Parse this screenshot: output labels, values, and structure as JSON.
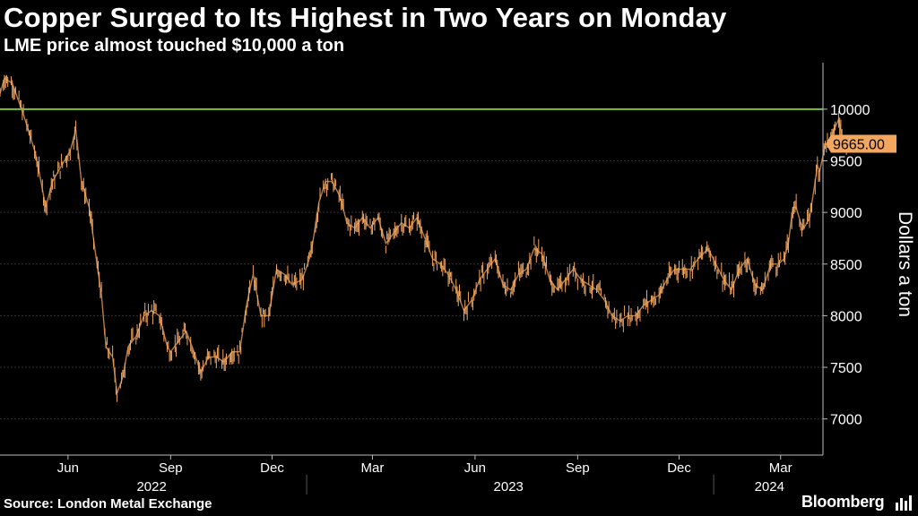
{
  "header": {
    "title": "Copper Surged to Its Highest in Two Years on Monday",
    "subtitle": "LME price almost touched $10,000 a ton"
  },
  "footer": {
    "source": "Source: London Metal Exchange",
    "brand": "Bloomberg",
    "brand_icon": "bloomberg-terminal-icon"
  },
  "colors": {
    "background": "#000000",
    "series": "#f2a65e",
    "reference_line": "#7ac143",
    "grid": "#333333",
    "label_bg": "#f2a65e",
    "label_text": "#000000"
  },
  "chart_data": {
    "type": "line",
    "style": "daily high-low bars (candlestick style)",
    "ylabel": "Dollars a ton",
    "ylim": [
      6650,
      10450
    ],
    "yticks": [
      7000,
      7500,
      8000,
      8500,
      9000,
      9500,
      10000
    ],
    "ytick_labels": [
      "7000",
      "7500",
      "8000",
      "8500",
      "9000",
      "9500",
      "10000"
    ],
    "xlim": [
      "2022-04-01",
      "2024-04-08"
    ],
    "xticks": [
      {
        "label": "Jun",
        "date": "2022-06-01"
      },
      {
        "label": "Sep",
        "date": "2022-09-01"
      },
      {
        "label": "Dec",
        "date": "2022-12-01"
      },
      {
        "label": "Mar",
        "date": "2023-03-01"
      },
      {
        "label": "Jun",
        "date": "2023-06-01"
      },
      {
        "label": "Sep",
        "date": "2023-09-01"
      },
      {
        "label": "Dec",
        "date": "2023-12-01"
      },
      {
        "label": "Mar",
        "date": "2024-03-01"
      }
    ],
    "year_labels": [
      {
        "label": "2022",
        "date": "2022-08-15"
      },
      {
        "label": "2023",
        "date": "2023-07-01"
      },
      {
        "label": "2024",
        "date": "2024-02-20"
      }
    ],
    "year_separators": [
      "2023-01-01",
      "2024-01-01"
    ],
    "reference_line": {
      "value": 10000
    },
    "last_value_label": {
      "value": 9665.0,
      "text": "9665.00"
    },
    "grid": true,
    "series": [
      {
        "points": [
          [
            "2022-04-01",
            10150
          ],
          [
            "2022-04-05",
            10300
          ],
          [
            "2022-04-12",
            10250
          ],
          [
            "2022-04-22",
            9950
          ],
          [
            "2022-05-02",
            9600
          ],
          [
            "2022-05-06",
            9400
          ],
          [
            "2022-05-12",
            9050
          ],
          [
            "2022-05-18",
            9300
          ],
          [
            "2022-05-26",
            9450
          ],
          [
            "2022-06-03",
            9600
          ],
          [
            "2022-06-08",
            9800
          ],
          [
            "2022-06-13",
            9300
          ],
          [
            "2022-06-20",
            9050
          ],
          [
            "2022-06-27",
            8500
          ],
          [
            "2022-07-01",
            8200
          ],
          [
            "2022-07-05",
            7700
          ],
          [
            "2022-07-11",
            7600
          ],
          [
            "2022-07-15",
            7250
          ],
          [
            "2022-07-20",
            7400
          ],
          [
            "2022-07-25",
            7700
          ],
          [
            "2022-08-01",
            7800
          ],
          [
            "2022-08-08",
            8000
          ],
          [
            "2022-08-15",
            8050
          ],
          [
            "2022-08-22",
            8000
          ],
          [
            "2022-08-29",
            7700
          ],
          [
            "2022-09-01",
            7650
          ],
          [
            "2022-09-08",
            7750
          ],
          [
            "2022-09-15",
            7850
          ],
          [
            "2022-09-22",
            7650
          ],
          [
            "2022-09-28",
            7450
          ],
          [
            "2022-10-05",
            7600
          ],
          [
            "2022-10-12",
            7600
          ],
          [
            "2022-10-19",
            7550
          ],
          [
            "2022-10-26",
            7650
          ],
          [
            "2022-11-02",
            7650
          ],
          [
            "2022-11-08",
            8100
          ],
          [
            "2022-11-14",
            8400
          ],
          [
            "2022-11-21",
            8000
          ],
          [
            "2022-11-28",
            8000
          ],
          [
            "2022-12-05",
            8450
          ],
          [
            "2022-12-12",
            8400
          ],
          [
            "2022-12-19",
            8300
          ],
          [
            "2022-12-28",
            8350
          ],
          [
            "2023-01-05",
            8600
          ],
          [
            "2023-01-12",
            9100
          ],
          [
            "2023-01-18",
            9300
          ],
          [
            "2023-01-24",
            9300
          ],
          [
            "2023-01-31",
            9150
          ],
          [
            "2023-02-06",
            8900
          ],
          [
            "2023-02-13",
            8850
          ],
          [
            "2023-02-20",
            8950
          ],
          [
            "2023-02-27",
            8850
          ],
          [
            "2023-03-06",
            8950
          ],
          [
            "2023-03-13",
            8700
          ],
          [
            "2023-03-20",
            8800
          ],
          [
            "2023-03-27",
            8900
          ],
          [
            "2023-04-03",
            8850
          ],
          [
            "2023-04-10",
            8950
          ],
          [
            "2023-04-17",
            8750
          ],
          [
            "2023-04-24",
            8550
          ],
          [
            "2023-05-01",
            8500
          ],
          [
            "2023-05-08",
            8400
          ],
          [
            "2023-05-15",
            8250
          ],
          [
            "2023-05-22",
            8050
          ],
          [
            "2023-05-29",
            8150
          ],
          [
            "2023-06-05",
            8350
          ],
          [
            "2023-06-12",
            8450
          ],
          [
            "2023-06-19",
            8550
          ],
          [
            "2023-06-26",
            8300
          ],
          [
            "2023-07-03",
            8250
          ],
          [
            "2023-07-10",
            8400
          ],
          [
            "2023-07-17",
            8450
          ],
          [
            "2023-07-24",
            8650
          ],
          [
            "2023-07-31",
            8600
          ],
          [
            "2023-08-07",
            8350
          ],
          [
            "2023-08-14",
            8250
          ],
          [
            "2023-08-21",
            8350
          ],
          [
            "2023-08-28",
            8450
          ],
          [
            "2023-09-04",
            8350
          ],
          [
            "2023-09-11",
            8300
          ],
          [
            "2023-09-18",
            8250
          ],
          [
            "2023-09-25",
            8150
          ],
          [
            "2023-10-02",
            8000
          ],
          [
            "2023-10-09",
            7950
          ],
          [
            "2023-10-16",
            8000
          ],
          [
            "2023-10-23",
            8000
          ],
          [
            "2023-10-30",
            8100
          ],
          [
            "2023-11-06",
            8150
          ],
          [
            "2023-11-13",
            8200
          ],
          [
            "2023-11-20",
            8350
          ],
          [
            "2023-11-27",
            8450
          ],
          [
            "2023-12-04",
            8450
          ],
          [
            "2023-12-11",
            8450
          ],
          [
            "2023-12-18",
            8550
          ],
          [
            "2023-12-27",
            8650
          ],
          [
            "2024-01-03",
            8500
          ],
          [
            "2024-01-10",
            8350
          ],
          [
            "2024-01-17",
            8250
          ],
          [
            "2024-01-24",
            8450
          ],
          [
            "2024-01-31",
            8550
          ],
          [
            "2024-02-07",
            8300
          ],
          [
            "2024-02-14",
            8250
          ],
          [
            "2024-02-21",
            8500
          ],
          [
            "2024-02-28",
            8500
          ],
          [
            "2024-03-04",
            8550
          ],
          [
            "2024-03-08",
            8700
          ],
          [
            "2024-03-12",
            9050
          ],
          [
            "2024-03-15",
            9050
          ],
          [
            "2024-03-19",
            8900
          ],
          [
            "2024-03-22",
            8850
          ],
          [
            "2024-03-27",
            8950
          ],
          [
            "2024-04-01",
            9300
          ],
          [
            "2024-04-03",
            9450
          ],
          [
            "2024-04-05",
            9400
          ],
          [
            "2024-04-10",
            9650
          ],
          [
            "2024-04-15",
            9700
          ],
          [
            "2024-04-18",
            9800
          ],
          [
            "2024-04-22",
            9900
          ],
          [
            "2024-04-25",
            9750
          ],
          [
            "2024-04-29",
            9665
          ]
        ]
      }
    ]
  }
}
